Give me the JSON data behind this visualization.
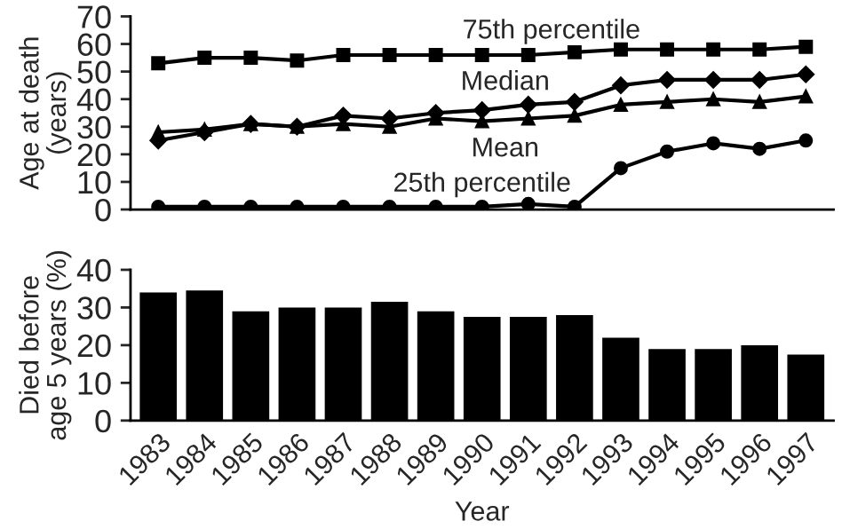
{
  "chart_data": [
    {
      "type": "line",
      "ylabel": "Age at death\n(years)",
      "categories": [
        "1983",
        "1984",
        "1985",
        "1986",
        "1987",
        "1988",
        "1989",
        "1990",
        "1991",
        "1992",
        "1993",
        "1994",
        "1995",
        "1996",
        "1997"
      ],
      "ylim": [
        0,
        70
      ],
      "yticks": [
        0,
        10,
        20,
        30,
        40,
        50,
        60,
        70
      ],
      "tick_labels": "y",
      "grid": false,
      "legend": false,
      "series": [
        {
          "name": "75th percentile",
          "color": "#000000",
          "marker": "square",
          "values": [
            53,
            55,
            55,
            54,
            56,
            56,
            56,
            56,
            56,
            57,
            58,
            58,
            58,
            58,
            59
          ]
        },
        {
          "name": "Median",
          "color": "#000000",
          "marker": "diamond",
          "values": [
            25,
            28,
            31,
            30,
            34,
            33,
            35,
            36,
            38,
            39,
            45,
            47,
            47,
            47,
            49
          ]
        },
        {
          "name": "Mean",
          "color": "#000000",
          "marker": "triangle",
          "values": [
            28,
            29,
            31,
            30,
            31,
            30,
            33,
            32,
            33,
            34,
            38,
            39,
            40,
            39,
            41
          ]
        },
        {
          "name": "25th percentile",
          "color": "#000000",
          "marker": "circle",
          "values": [
            1,
            1,
            1,
            1,
            1,
            1,
            1,
            1,
            2,
            1,
            15,
            21,
            24,
            22,
            25
          ]
        }
      ]
    },
    {
      "type": "bar",
      "xlabel": "Year",
      "ylabel": "Died before\nage 5 years (%)",
      "categories": [
        "1983",
        "1984",
        "1985",
        "1986",
        "1987",
        "1988",
        "1989",
        "1990",
        "1991",
        "1992",
        "1993",
        "1994",
        "1995",
        "1996",
        "1997"
      ],
      "ylim": [
        0,
        40
      ],
      "yticks": [
        0,
        10,
        20,
        30,
        40
      ],
      "grid": false,
      "legend": false,
      "series": [
        {
          "color": "#000000",
          "values": [
            34,
            34.5,
            29,
            30,
            30,
            31.5,
            29,
            27.5,
            27.5,
            28,
            22,
            19,
            19,
            20,
            17.5
          ]
        }
      ]
    }
  ]
}
